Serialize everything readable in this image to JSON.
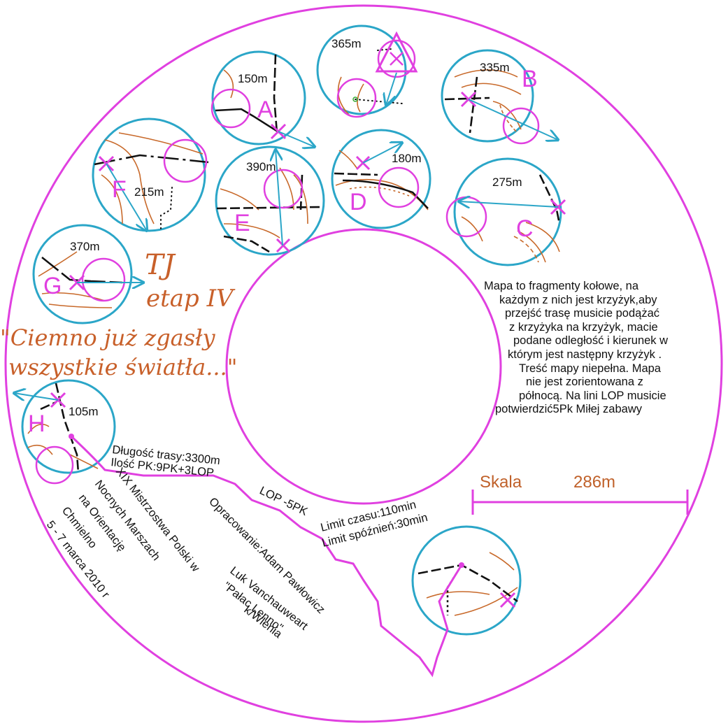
{
  "title": {
    "line1": "TJ",
    "line2": "etap IV",
    "quote1": "\"Ciemno już zgasły",
    "quote2": "wszystkie światła...\""
  },
  "controls": [
    {
      "letter": "A",
      "distance": "150m"
    },
    {
      "letter": "",
      "distance": "365m"
    },
    {
      "letter": "B",
      "distance": "335m"
    },
    {
      "letter": "F",
      "distance": "215m"
    },
    {
      "letter": "E",
      "distance": "390m"
    },
    {
      "letter": "D",
      "distance": "180m"
    },
    {
      "letter": "C",
      "distance": "275m"
    },
    {
      "letter": "G",
      "distance": "370m"
    },
    {
      "letter": "H",
      "distance": "105m"
    }
  ],
  "description": [
    "Mapa to fragmenty kołowe, na",
    "każdym z nich jest krzyżyk,aby",
    "przejść trasę musicie podążać",
    "z  krzyżyka na krzyżyk, macie",
    "podane odległość i kierunek w",
    "którym jest następny krzyżyk .",
    "Treść mapy  niepełna. Mapa",
    "nie jest zorientowana z",
    "północą. Na lini LOP musicie",
    "potwierdzić5Pk Miłej zabawy"
  ],
  "scale": {
    "label": "Skala",
    "value": "286m"
  },
  "course": {
    "length": "Długość trasy:3300m",
    "points": "Ilość PK:9PK+3LOP",
    "lop": "LOP -5PK",
    "time_limit": "Limit czasu:110min",
    "late_limit": "Limit spóźnień:30min"
  },
  "author": "Opracowanie:Adam Pawłowicz",
  "event": [
    "XIX Mistrzostwa Polski w",
    "Nocnych Marszach",
    "na Orientację",
    "Chmielno",
    "5 - 7 marca 2010 r"
  ],
  "location": [
    "Luk Vanchauweart",
    "\"Pałac Lenno\"",
    "k/Wlenia"
  ],
  "colors": {
    "ring": "#e040e0",
    "circle": "#2ba6c8",
    "contour": "#c8692a",
    "title": "#c8602a"
  }
}
